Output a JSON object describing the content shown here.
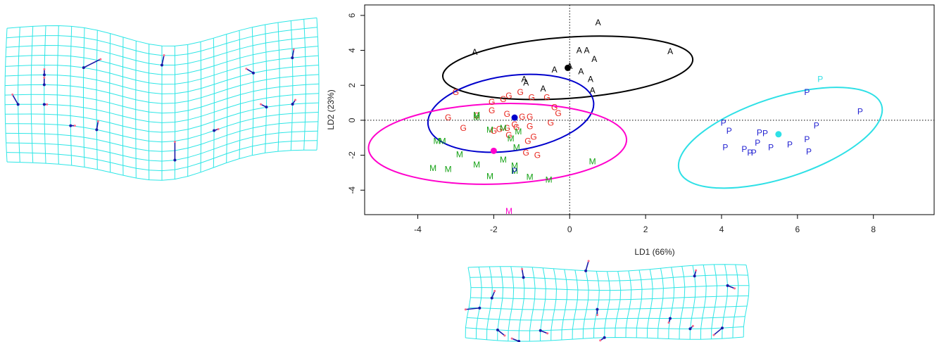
{
  "chart_data": {
    "type": "scatter",
    "xlabel": "LD1 (66%)",
    "ylabel": "LD2 (23%)",
    "xlim": [
      -5.4,
      9.6
    ],
    "ylim": [
      -5.4,
      6.6
    ],
    "x_ticks": [
      -4,
      -2,
      0,
      2,
      4,
      6,
      8
    ],
    "y_ticks": [
      -4,
      -2,
      0,
      2,
      4,
      6
    ],
    "reference_lines": {
      "x": 0,
      "y": 0,
      "style": "dotted"
    },
    "series": [
      {
        "name": "A",
        "color": "#000000",
        "centroid_color": "#000000",
        "centroid": [
          -0.05,
          3.0
        ],
        "ellipse": {
          "cx": -0.05,
          "cy": 3.0,
          "rx": 3.3,
          "ry": 1.75,
          "angle": 4
        },
        "points": [
          [
            0.75,
            5.6
          ],
          [
            -2.5,
            3.9
          ],
          [
            0.25,
            4.0
          ],
          [
            0.45,
            4.0
          ],
          [
            2.65,
            3.95
          ],
          [
            0.65,
            3.5
          ],
          [
            -0.4,
            2.9
          ],
          [
            0.0,
            3.1
          ],
          [
            0.3,
            2.8
          ],
          [
            0.55,
            2.35
          ],
          [
            -1.2,
            2.35
          ],
          [
            -1.15,
            2.15
          ],
          [
            -0.7,
            1.8
          ],
          [
            0.6,
            1.7
          ]
        ]
      },
      {
        "name": "G",
        "color": "#e8261e",
        "centroid_color": "#0000cc",
        "centroid": [
          -1.45,
          0.15
        ],
        "ellipse": {
          "cx": -1.55,
          "cy": 0.4,
          "rx": 2.2,
          "ry": 2.15,
          "angle": 8
        },
        "points": [
          [
            -3.0,
            1.6
          ],
          [
            -1.3,
            1.6
          ],
          [
            -1.6,
            1.4
          ],
          [
            -1.0,
            1.3
          ],
          [
            -0.6,
            1.3
          ],
          [
            -2.05,
            1.05
          ],
          [
            -1.75,
            1.2
          ],
          [
            -0.4,
            0.75
          ],
          [
            -2.05,
            0.55
          ],
          [
            -1.65,
            0.35
          ],
          [
            -1.25,
            0.2
          ],
          [
            -1.05,
            0.2
          ],
          [
            -3.2,
            0.15
          ],
          [
            -0.3,
            0.4
          ],
          [
            -1.45,
            -0.25
          ],
          [
            -0.5,
            -0.15
          ],
          [
            -1.05,
            -0.35
          ],
          [
            -1.65,
            -0.45
          ],
          [
            -2.8,
            -0.45
          ],
          [
            -2.0,
            -0.6
          ],
          [
            -0.95,
            -0.95
          ],
          [
            -1.1,
            -1.2
          ],
          [
            -1.6,
            -0.85
          ],
          [
            -1.15,
            -1.85
          ],
          [
            -0.85,
            -2.0
          ],
          [
            -1.85,
            -0.5
          ],
          [
            -2.45,
            0.25
          ],
          [
            -1.4,
            -0.4
          ]
        ]
      },
      {
        "name": "M",
        "color": "#17a317",
        "centroid_color": "#ff00cc",
        "centroid": [
          -2.0,
          -1.75
        ],
        "ellipse": {
          "cx": -1.9,
          "cy": -1.35,
          "rx": 3.4,
          "ry": 2.3,
          "angle": 2
        },
        "points": [
          [
            -2.45,
            0.3
          ],
          [
            -2.45,
            0.15
          ],
          [
            -2.1,
            -0.55
          ],
          [
            -1.75,
            -0.45
          ],
          [
            -1.35,
            -0.65
          ],
          [
            -1.55,
            -1.05
          ],
          [
            -3.5,
            -1.2
          ],
          [
            -3.35,
            -1.2
          ],
          [
            -1.4,
            -1.55
          ],
          [
            -2.9,
            -1.95
          ],
          [
            -1.75,
            -2.25
          ],
          [
            -2.45,
            -2.55
          ],
          [
            -3.6,
            -2.75
          ],
          [
            -3.2,
            -2.8
          ],
          [
            -1.45,
            -2.6
          ],
          [
            -1.45,
            -2.9
          ],
          [
            -2.1,
            -3.2
          ],
          [
            -1.05,
            -3.25
          ],
          [
            -0.55,
            -3.4
          ],
          [
            0.6,
            -2.35
          ],
          [
            -1.6,
            -5.2
          ]
        ]
      },
      {
        "name": "P",
        "color": "#1f1fd1",
        "centroid_color": "#2ee0e6",
        "centroid": [
          5.5,
          -0.8
        ],
        "ellipse": {
          "cx": 5.55,
          "cy": -1.0,
          "rx": 2.8,
          "ry": 2.3,
          "angle": 18
        },
        "points": [
          [
            6.6,
            2.35
          ],
          [
            6.25,
            1.6
          ],
          [
            7.65,
            0.5
          ],
          [
            4.05,
            -0.15
          ],
          [
            6.5,
            -0.3
          ],
          [
            4.2,
            -0.6
          ],
          [
            5.0,
            -0.7
          ],
          [
            5.15,
            -0.75
          ],
          [
            6.25,
            -1.1
          ],
          [
            4.95,
            -1.3
          ],
          [
            5.8,
            -1.4
          ],
          [
            4.1,
            -1.55
          ],
          [
            4.6,
            -1.65
          ],
          [
            5.3,
            -1.55
          ],
          [
            4.75,
            -1.85
          ],
          [
            4.85,
            -1.85
          ],
          [
            6.3,
            -1.8
          ],
          [
            -1.45,
            -2.9
          ]
        ]
      }
    ]
  },
  "deformation_grids": {
    "left": {
      "grid_color": "#2ee6e6",
      "vector_color": "#1a1aa8"
    },
    "bottom": {
      "grid_color": "#2ee6e6",
      "vector_color": "#1a1aa8"
    }
  }
}
